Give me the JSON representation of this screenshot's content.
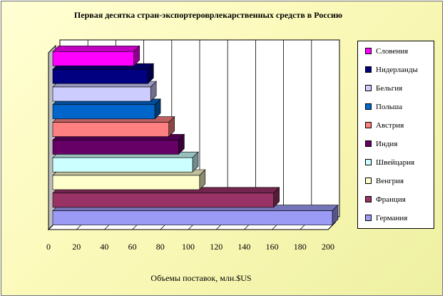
{
  "chart_data": {
    "type": "bar",
    "orientation": "horizontal",
    "style": "3d",
    "title": "Первая десятка стран-экспортероврлекарственных средств в Россию",
    "xlabel": "Объемы поставок, млн.$US",
    "ylabel": "",
    "xlim": [
      0,
      200
    ],
    "xticks": [
      "0",
      "20",
      "40",
      "60",
      "80",
      "100",
      "120",
      "140",
      "160",
      "180",
      "200"
    ],
    "grid": true,
    "legend_position": "right",
    "categories": [
      "Германия",
      "Франция",
      "Венгрия",
      "Швейцария",
      "Индия",
      "Австрия",
      "Польша",
      "Бельгия",
      "Нидерланды",
      "Словения"
    ],
    "values": [
      200,
      158,
      105,
      100,
      90,
      83,
      73,
      70,
      68,
      58
    ],
    "colors": [
      "#9b9bf6",
      "#993366",
      "#ffffcc",
      "#ccffff",
      "#660066",
      "#ff8080",
      "#0066cc",
      "#ccccff",
      "#000080",
      "#ff00ff"
    ]
  }
}
